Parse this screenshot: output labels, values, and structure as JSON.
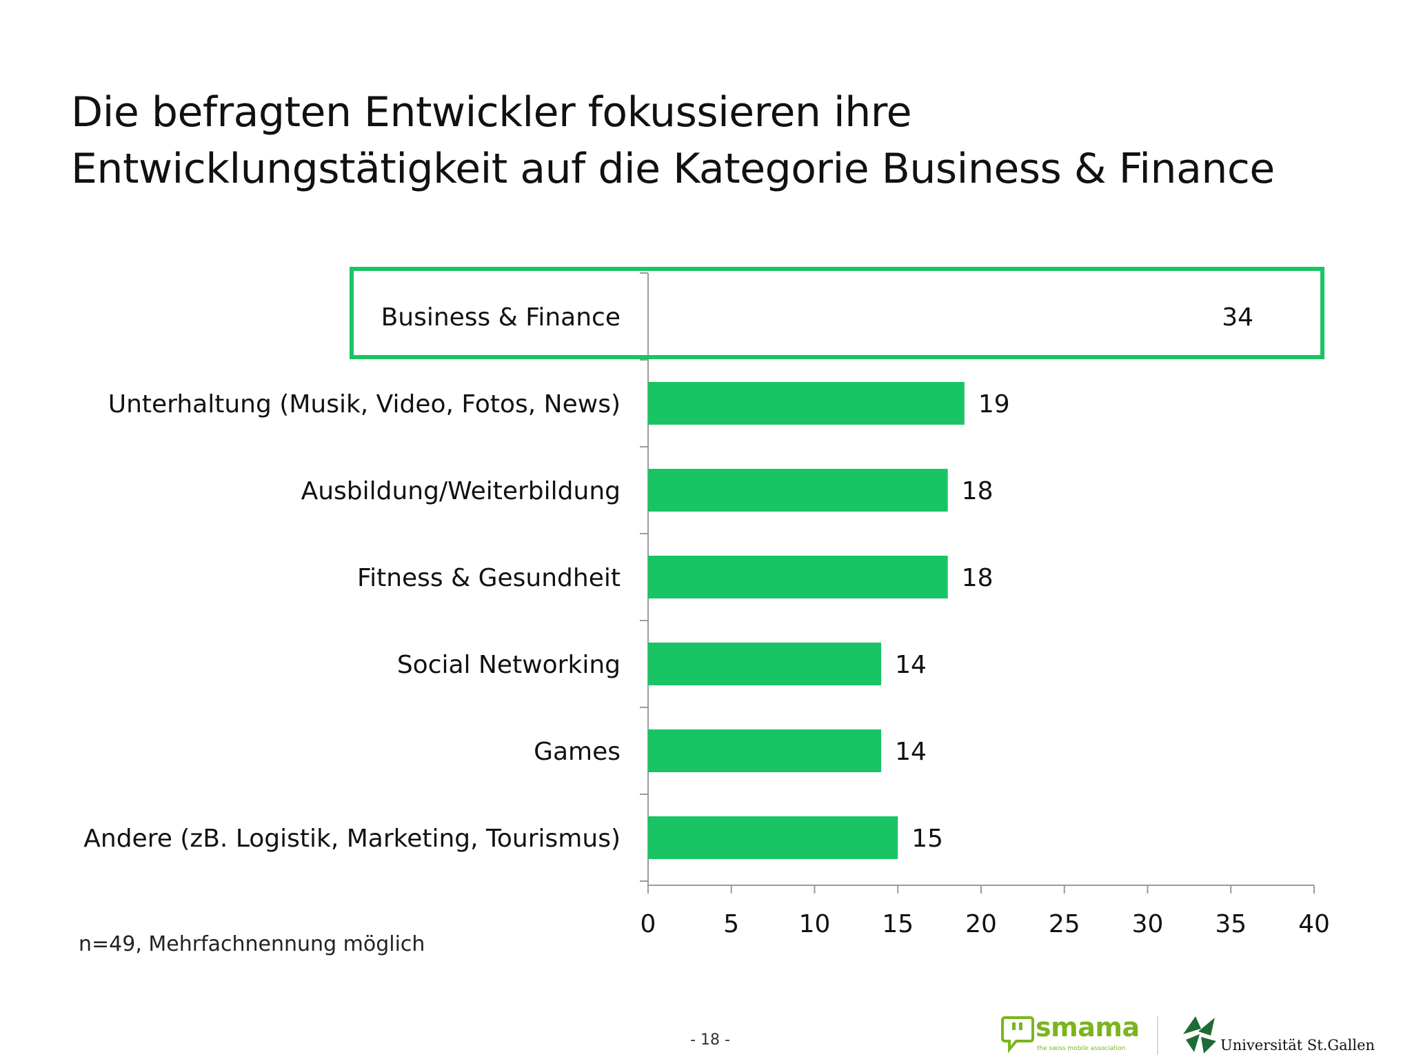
{
  "slide": {
    "title_line1": "Die befragten Entwickler fokussieren ihre",
    "title_line2": "Entwicklungstätigkeit auf die Kategorie Business & Finance",
    "note": "n=49, Mehrfachnennung möglich",
    "page_number": "- 18 -"
  },
  "logos": {
    "smama_name": "smama",
    "smama_tagline": "the swiss mobile association",
    "hsg_name": "Universität St.Gallen"
  },
  "colors": {
    "bar": "#19c464",
    "highlight": "#19c464",
    "axis": "#9a9a9a",
    "text": "#111111"
  },
  "chart_data": {
    "type": "bar",
    "orientation": "horizontal",
    "categories": [
      "Business & Finance",
      "Unterhaltung (Musik, Video, Fotos, News)",
      "Ausbildung/Weiterbildung",
      "Fitness & Gesundheit",
      "Social Networking",
      "Games",
      "Andere (zB. Logistik, Marketing, Tourismus)"
    ],
    "values": [
      34,
      19,
      18,
      18,
      14,
      14,
      15
    ],
    "highlighted_category": "Business & Finance",
    "xlim": [
      0,
      40
    ],
    "xticks": [
      0,
      5,
      10,
      15,
      20,
      25,
      30,
      35,
      40
    ],
    "grid": false,
    "legend": "none"
  }
}
